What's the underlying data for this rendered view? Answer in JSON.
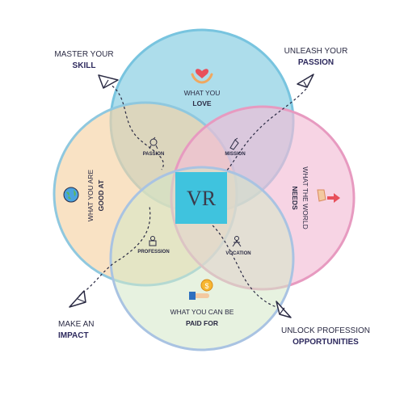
{
  "callouts": {
    "top_left": {
      "line1": "MASTER YOUR",
      "line2": "SKILL"
    },
    "top_right": {
      "line1": "UNLEASH YOUR",
      "line2": "PASSION"
    },
    "bottom_left": {
      "line1": "MAKE AN",
      "line2": "IMPACT"
    },
    "bottom_right": {
      "line1": "UNLOCK PROFESSION",
      "line2": "OPPORTUNITIES"
    }
  },
  "circles": {
    "love": {
      "line1": "WHAT YOU",
      "line2": "LOVE",
      "color": "#7fcbe0",
      "stroke": "#78c4df",
      "icon": "hands-heart-icon"
    },
    "good_at": {
      "line1": "WHAT YOU ARE",
      "line2": "GOOD AT",
      "color": "#f6d2a5",
      "stroke": "#8fc8df",
      "icon": "globe-icon"
    },
    "world_needs": {
      "line1": "WHAT THE WORLD",
      "line2": "NEEDS",
      "color": "#f2bdd6",
      "stroke": "#e79ac0",
      "icon": "hand-pointing-icon"
    },
    "paid_for": {
      "line1": "WHAT YOU CAN BE",
      "line2": "PAID FOR",
      "color": "#d3e8c6",
      "stroke": "#a9c3e2",
      "icon": "hand-coin-icon"
    }
  },
  "intersections": {
    "passion": "PASSION",
    "mission": "MISSION",
    "profession": "PROFESSION",
    "vocation": "VOCATION"
  },
  "center_logo": "VR",
  "colors": {
    "dark_text": "#2b2b44",
    "accent": "#2e2a5e",
    "center": "#3fc3de"
  }
}
